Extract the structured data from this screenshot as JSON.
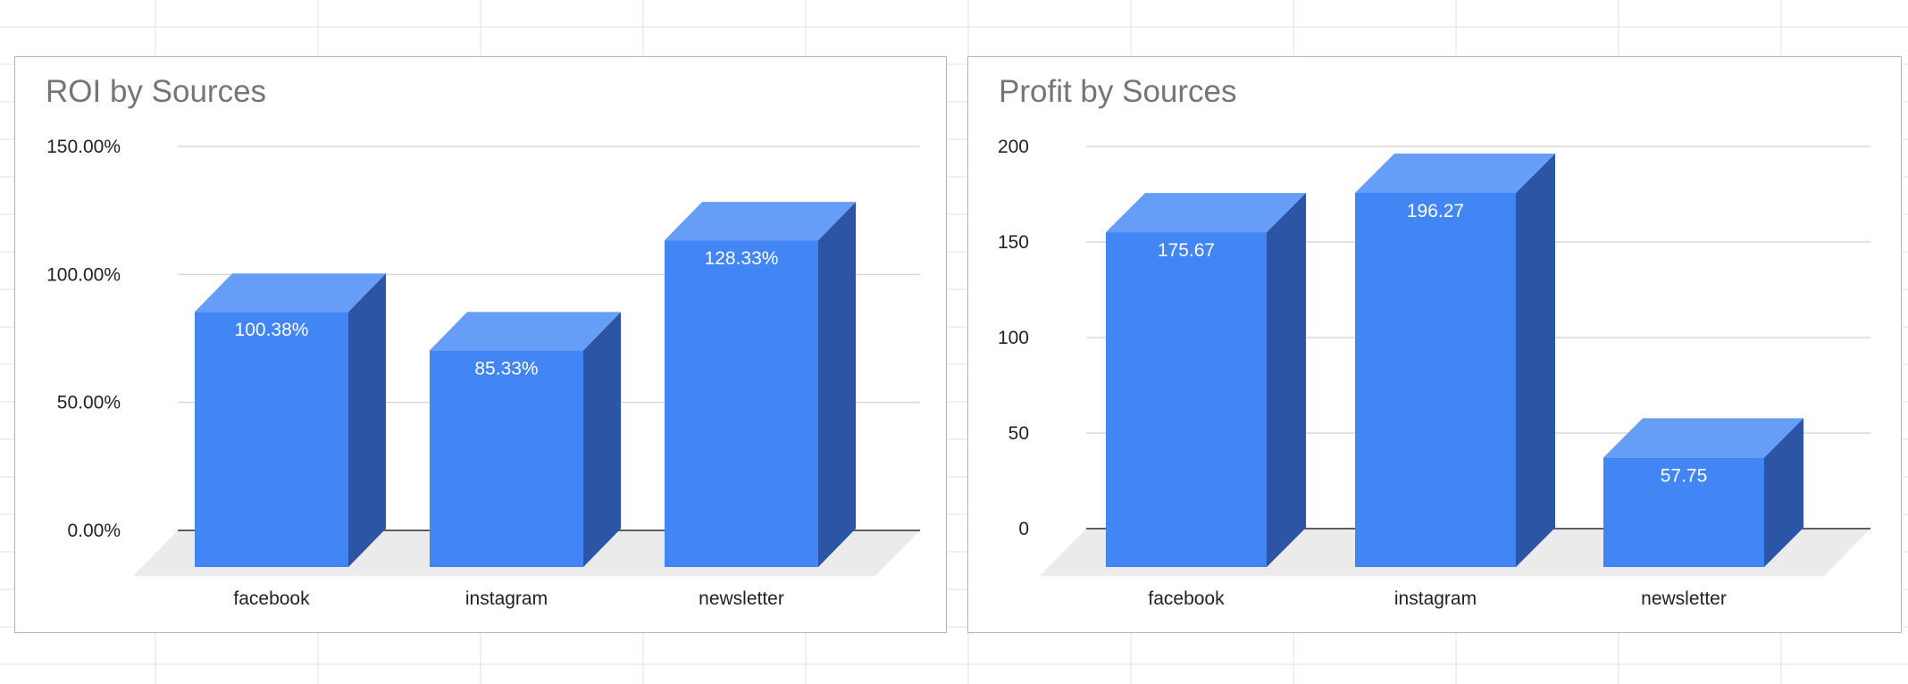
{
  "colors": {
    "bar_front": "#4285f4",
    "bar_top": "#669df6",
    "bar_side": "#2c55a5",
    "floor": "#ebebeb",
    "gridline": "#d9d9d9",
    "baseline": "#5f5f5f",
    "title": "#757575",
    "data_label": "#ffffff"
  },
  "chart_data": [
    {
      "type": "bar",
      "title": "ROI by Sources",
      "categories": [
        "facebook",
        "instagram",
        "newsletter"
      ],
      "series": [
        {
          "values": [
            100.38,
            85.33,
            128.33
          ]
        }
      ],
      "value_labels": [
        "100.38%",
        "85.33%",
        "128.33%"
      ],
      "ylim": [
        0,
        150
      ],
      "yticks": [
        0,
        50,
        100,
        150
      ],
      "ytick_labels": [
        "0.00%",
        "50.00%",
        "100.00%",
        "150.00%"
      ],
      "grid": true,
      "legend": "none",
      "style": "3d"
    },
    {
      "type": "bar",
      "title": "Profit by Sources",
      "categories": [
        "facebook",
        "instagram",
        "newsletter"
      ],
      "series": [
        {
          "values": [
            175.67,
            196.27,
            57.75
          ]
        }
      ],
      "value_labels": [
        "175.67",
        "196.27",
        "57.75"
      ],
      "ylim": [
        0,
        200
      ],
      "yticks": [
        0,
        50,
        100,
        150,
        200
      ],
      "ytick_labels": [
        "0",
        "50",
        "100",
        "150",
        "200"
      ],
      "grid": true,
      "legend": "none",
      "style": "3d"
    }
  ]
}
